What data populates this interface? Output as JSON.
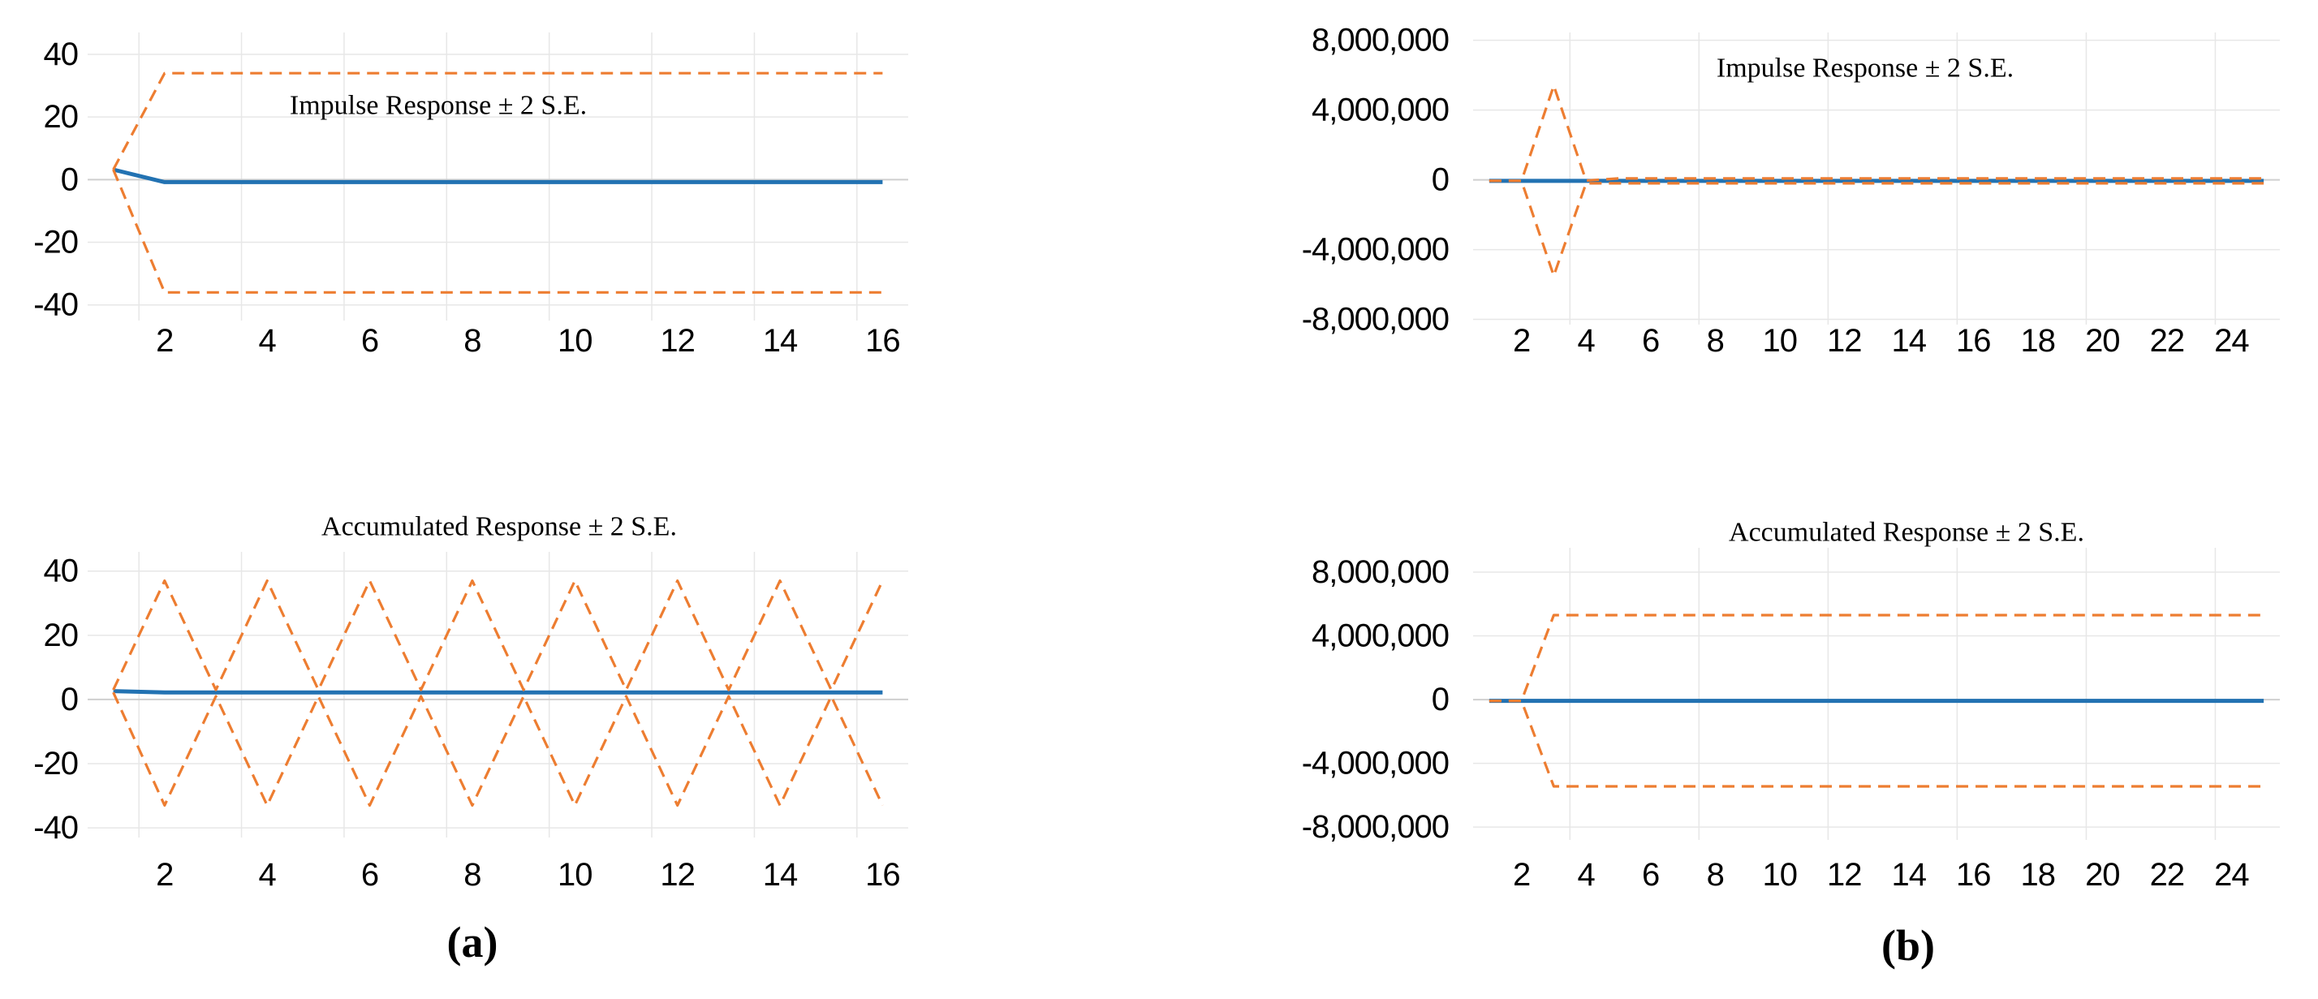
{
  "figure": {
    "background": "#ffffff",
    "panels": [
      {
        "id": "a",
        "label": "(a)"
      },
      {
        "id": "b",
        "label": "(b)"
      }
    ]
  },
  "colors": {
    "response_line": "#2272B2",
    "se_band_line": "#ED7D31",
    "gridline": "#E7E7E7",
    "zero_line": "#CFCFCF",
    "text": "#000000"
  },
  "chart_data": [
    {
      "id": "impulse-a",
      "panel": "a",
      "type": "line",
      "title": "Impulse Response ± 2 S.E.",
      "x": [
        1,
        2,
        3,
        4,
        5,
        6,
        7,
        8,
        9,
        10,
        11,
        12,
        13,
        14,
        15,
        16
      ],
      "xticks": [
        2,
        4,
        6,
        8,
        10,
        12,
        14,
        16
      ],
      "yticks": {
        "values": [
          40,
          20,
          0,
          -20,
          -40
        ],
        "labels": [
          "40",
          "20",
          "0",
          "-20",
          "-40"
        ]
      },
      "xlim": [
        0.5,
        16.5
      ],
      "ylim": [
        -45,
        47
      ],
      "x_gridlines": [
        1.5,
        3.5,
        5.5,
        7.5,
        9.5,
        11.5,
        13.5,
        15.5
      ],
      "grid": true,
      "legend": "none",
      "series": [
        {
          "name": "Impulse Response",
          "role": "response",
          "style": "solid",
          "values": [
            3.2,
            -0.8,
            -0.8,
            -0.8,
            -0.8,
            -0.8,
            -0.8,
            -0.8,
            -0.8,
            -0.8,
            -0.8,
            -0.8,
            -0.8,
            -0.8,
            -0.8,
            -0.8
          ]
        },
        {
          "name": "+2 S.E.",
          "role": "upper-band",
          "style": "dashed",
          "values": [
            3.2,
            34,
            34,
            34,
            34,
            34,
            34,
            34,
            34,
            34,
            34,
            34,
            34,
            34,
            34,
            34
          ]
        },
        {
          "name": "-2 S.E.",
          "role": "lower-band",
          "style": "dashed",
          "values": [
            3.2,
            -36,
            -36,
            -36,
            -36,
            -36,
            -36,
            -36,
            -36,
            -36,
            -36,
            -36,
            -36,
            -36,
            -36,
            -36
          ]
        }
      ]
    },
    {
      "id": "accumulated-a",
      "panel": "a",
      "type": "line",
      "title": "Accumulated Response ± 2 S.E.",
      "x": [
        1,
        2,
        3,
        4,
        5,
        6,
        7,
        8,
        9,
        10,
        11,
        12,
        13,
        14,
        15,
        16
      ],
      "xticks": [
        2,
        4,
        6,
        8,
        10,
        12,
        14,
        16
      ],
      "yticks": {
        "values": [
          40,
          20,
          0,
          -20,
          -40
        ],
        "labels": [
          "40",
          "20",
          "0",
          "-20",
          "-40"
        ]
      },
      "xlim": [
        0.5,
        16.5
      ],
      "ylim": [
        -43,
        46
      ],
      "x_gridlines": [
        1.5,
        3.5,
        5.5,
        7.5,
        9.5,
        11.5,
        13.5,
        15.5
      ],
      "grid": true,
      "legend": "none",
      "series": [
        {
          "name": "Accumulated Response",
          "role": "response",
          "style": "solid",
          "values": [
            2.6,
            2.2,
            2.2,
            2.2,
            2.2,
            2.2,
            2.2,
            2.2,
            2.2,
            2.2,
            2.2,
            2.2,
            2.2,
            2.2,
            2.2,
            2.2
          ]
        },
        {
          "name": "+2 S.E.",
          "role": "upper-band",
          "style": "dashed",
          "values": [
            3,
            37,
            3,
            37,
            3,
            37,
            3,
            37,
            3,
            37,
            3,
            37,
            3,
            37,
            3,
            37
          ]
        },
        {
          "name": "-2 S.E.",
          "role": "lower-band",
          "style": "dashed",
          "values": [
            2.2,
            -33,
            1,
            -33,
            1,
            -33,
            1,
            -33,
            1,
            -33,
            1,
            -33,
            1,
            -33,
            1,
            -33
          ]
        }
      ]
    },
    {
      "id": "impulse-b",
      "panel": "b",
      "type": "line",
      "title": "Impulse Response ± 2 S.E.",
      "x": [
        1,
        2,
        3,
        4,
        5,
        6,
        7,
        8,
        9,
        10,
        11,
        12,
        13,
        14,
        15,
        16,
        17,
        18,
        19,
        20,
        21,
        22,
        23,
        24,
        25
      ],
      "xticks": [
        2,
        4,
        6,
        8,
        10,
        12,
        14,
        16,
        18,
        20,
        22,
        24
      ],
      "yticks": {
        "values": [
          8000000,
          4000000,
          0,
          -4000000,
          -8000000
        ],
        "labels": [
          "8,000,000",
          "4,000,000",
          "0",
          "-4,000,000",
          "-8,000,000"
        ]
      },
      "xlim": [
        0.5,
        25.5
      ],
      "ylim": [
        -8300000,
        8450000
      ],
      "x_gridlines": [
        3.5,
        7.5,
        11.5,
        15.5,
        19.5,
        23.5
      ],
      "grid": true,
      "legend": "none",
      "series": [
        {
          "name": "Impulse Response",
          "role": "response",
          "style": "solid",
          "values": [
            -60000,
            -60000,
            -60000,
            -60000,
            -60000,
            -60000,
            -60000,
            -60000,
            -60000,
            -60000,
            -60000,
            -60000,
            -60000,
            -60000,
            -60000,
            -60000,
            -60000,
            -60000,
            -60000,
            -60000,
            -60000,
            -60000,
            -60000,
            -60000,
            -60000
          ]
        },
        {
          "name": "+2 S.E.",
          "role": "upper-band",
          "style": "dashed",
          "values": [
            -60000,
            -60000,
            5400000,
            -40000,
            80000,
            80000,
            80000,
            80000,
            80000,
            80000,
            80000,
            80000,
            80000,
            80000,
            80000,
            80000,
            80000,
            80000,
            80000,
            80000,
            80000,
            80000,
            80000,
            80000,
            80000
          ]
        },
        {
          "name": "-2 S.E.",
          "role": "lower-band",
          "style": "dashed",
          "values": [
            -60000,
            -60000,
            -5500000,
            -200000,
            -200000,
            -200000,
            -200000,
            -200000,
            -200000,
            -200000,
            -200000,
            -200000,
            -200000,
            -200000,
            -200000,
            -200000,
            -200000,
            -200000,
            -200000,
            -200000,
            -200000,
            -200000,
            -200000,
            -200000,
            -200000
          ]
        }
      ]
    },
    {
      "id": "accumulated-b",
      "panel": "b",
      "type": "line",
      "title": "Accumulated Response ± 2 S.E.",
      "x": [
        1,
        2,
        3,
        4,
        5,
        6,
        7,
        8,
        9,
        10,
        11,
        12,
        13,
        14,
        15,
        16,
        17,
        18,
        19,
        20,
        21,
        22,
        23,
        24,
        25
      ],
      "xticks": [
        2,
        4,
        6,
        8,
        10,
        12,
        14,
        16,
        18,
        20,
        22,
        24
      ],
      "yticks": {
        "values": [
          8000000,
          4000000,
          0,
          -4000000,
          -8000000
        ],
        "labels": [
          "8,000,000",
          "4,000,000",
          "0",
          "-4,000,000",
          "-8,000,000"
        ]
      },
      "xlim": [
        0.5,
        25.5
      ],
      "ylim": [
        -8810000,
        9530000
      ],
      "x_gridlines": [
        3.5,
        7.5,
        11.5,
        15.5,
        19.5,
        23.5
      ],
      "grid": true,
      "legend": "none",
      "series": [
        {
          "name": "Accumulated Response",
          "role": "response",
          "style": "solid",
          "values": [
            -80000,
            -80000,
            -80000,
            -80000,
            -80000,
            -80000,
            -80000,
            -80000,
            -80000,
            -80000,
            -80000,
            -80000,
            -80000,
            -80000,
            -80000,
            -80000,
            -80000,
            -80000,
            -80000,
            -80000,
            -80000,
            -80000,
            -80000,
            -80000,
            -80000
          ]
        },
        {
          "name": "+2 S.E.",
          "role": "upper-band",
          "style": "dashed",
          "values": [
            -80000,
            -80000,
            5300000,
            5300000,
            5300000,
            5300000,
            5300000,
            5300000,
            5300000,
            5300000,
            5300000,
            5300000,
            5300000,
            5300000,
            5300000,
            5300000,
            5300000,
            5300000,
            5300000,
            5300000,
            5300000,
            5300000,
            5300000,
            5300000,
            5300000
          ]
        },
        {
          "name": "-2 S.E.",
          "role": "lower-band",
          "style": "dashed",
          "values": [
            -80000,
            -80000,
            -5450000,
            -5450000,
            -5450000,
            -5450000,
            -5450000,
            -5450000,
            -5450000,
            -5450000,
            -5450000,
            -5450000,
            -5450000,
            -5450000,
            -5450000,
            -5450000,
            -5450000,
            -5450000,
            -5450000,
            -5450000,
            -5450000,
            -5450000,
            -5450000,
            -5450000,
            -5450000
          ]
        }
      ]
    }
  ]
}
